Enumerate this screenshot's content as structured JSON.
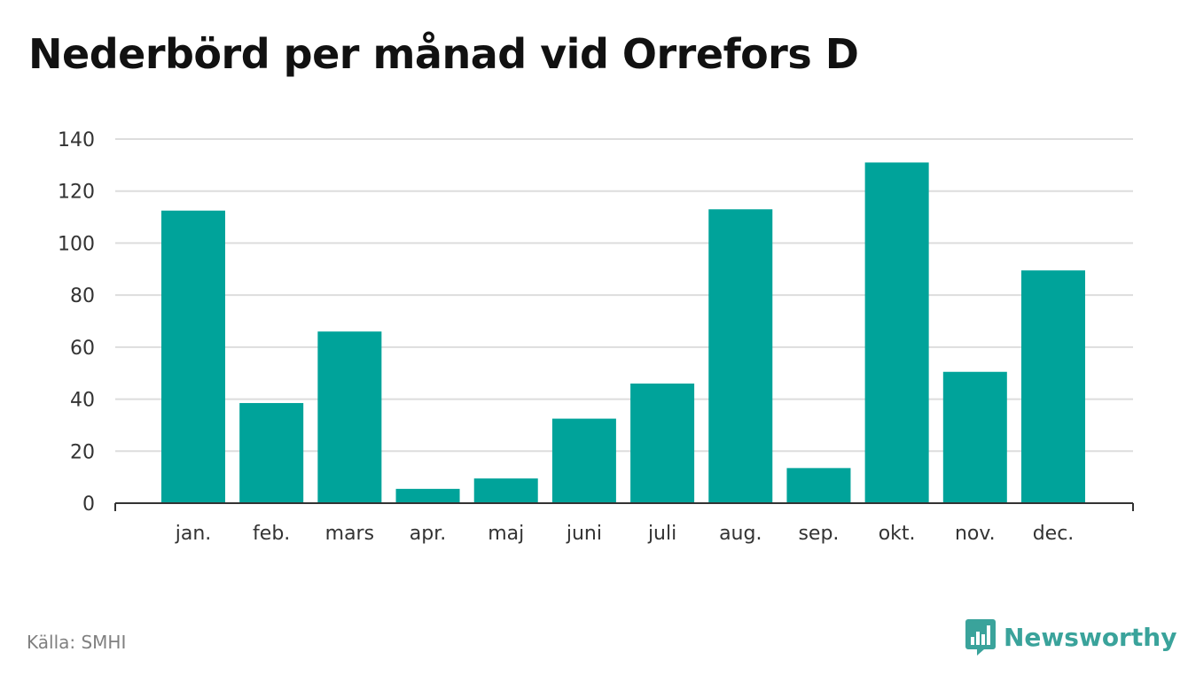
{
  "title": "Nederbörd per månad vid Orrefors D",
  "source": "Källa: SMHI",
  "brand": {
    "name": "Newsworthy",
    "icon": "newsworthy-logo-icon",
    "color": "#3aa39b"
  },
  "colors": {
    "bar": "#00a39a",
    "grid": "#dddddd",
    "axis": "#333333",
    "text": "#333333"
  },
  "chart_data": {
    "type": "bar",
    "title": "Nederbörd per månad vid Orrefors D",
    "xlabel": "",
    "ylabel": "",
    "categories": [
      "jan.",
      "feb.",
      "mars",
      "apr.",
      "maj",
      "juni",
      "juli",
      "aug.",
      "sep.",
      "okt.",
      "nov.",
      "dec."
    ],
    "values": [
      112.5,
      38.5,
      66,
      5.5,
      9.5,
      32.5,
      46,
      113,
      13.5,
      131,
      50.5,
      89.5
    ],
    "ylim": [
      0,
      140
    ],
    "yticks": [
      0,
      20,
      40,
      60,
      80,
      100,
      120,
      140
    ],
    "grid": true,
    "legend": "none"
  }
}
